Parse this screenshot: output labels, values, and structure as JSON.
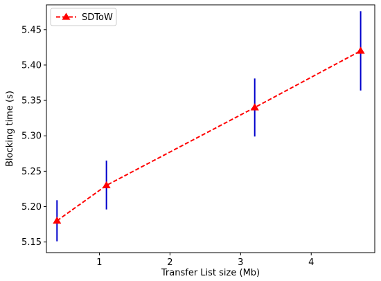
{
  "chart_data": {
    "type": "line",
    "title": "",
    "xlabel": "Transfer List size (Mb)",
    "ylabel": "Blocking time (s)",
    "xlim": [
      0.25,
      4.9
    ],
    "ylim": [
      5.135,
      5.485
    ],
    "xticks": [
      1,
      2,
      3,
      4
    ],
    "yticks": [
      5.15,
      5.2,
      5.25,
      5.3,
      5.35,
      5.4,
      5.45
    ],
    "xtick_labels": [
      "1",
      "2",
      "3",
      "4"
    ],
    "ytick_labels": [
      "5.15",
      "5.20",
      "5.25",
      "5.30",
      "5.35",
      "5.40",
      "5.45"
    ],
    "legend_position": "top-left",
    "grid": false,
    "series": [
      {
        "name": "SDToW",
        "color": "#ff0000",
        "line_style": "dashed",
        "marker": "triangle-up",
        "x": [
          0.4,
          1.1,
          3.2,
          4.7
        ],
        "y": [
          5.18,
          5.23,
          5.34,
          5.42
        ],
        "error_low": [
          5.151,
          5.196,
          5.299,
          5.364
        ],
        "error_high": [
          5.209,
          5.265,
          5.381,
          5.476
        ],
        "error_color": "#0000cc"
      }
    ]
  }
}
